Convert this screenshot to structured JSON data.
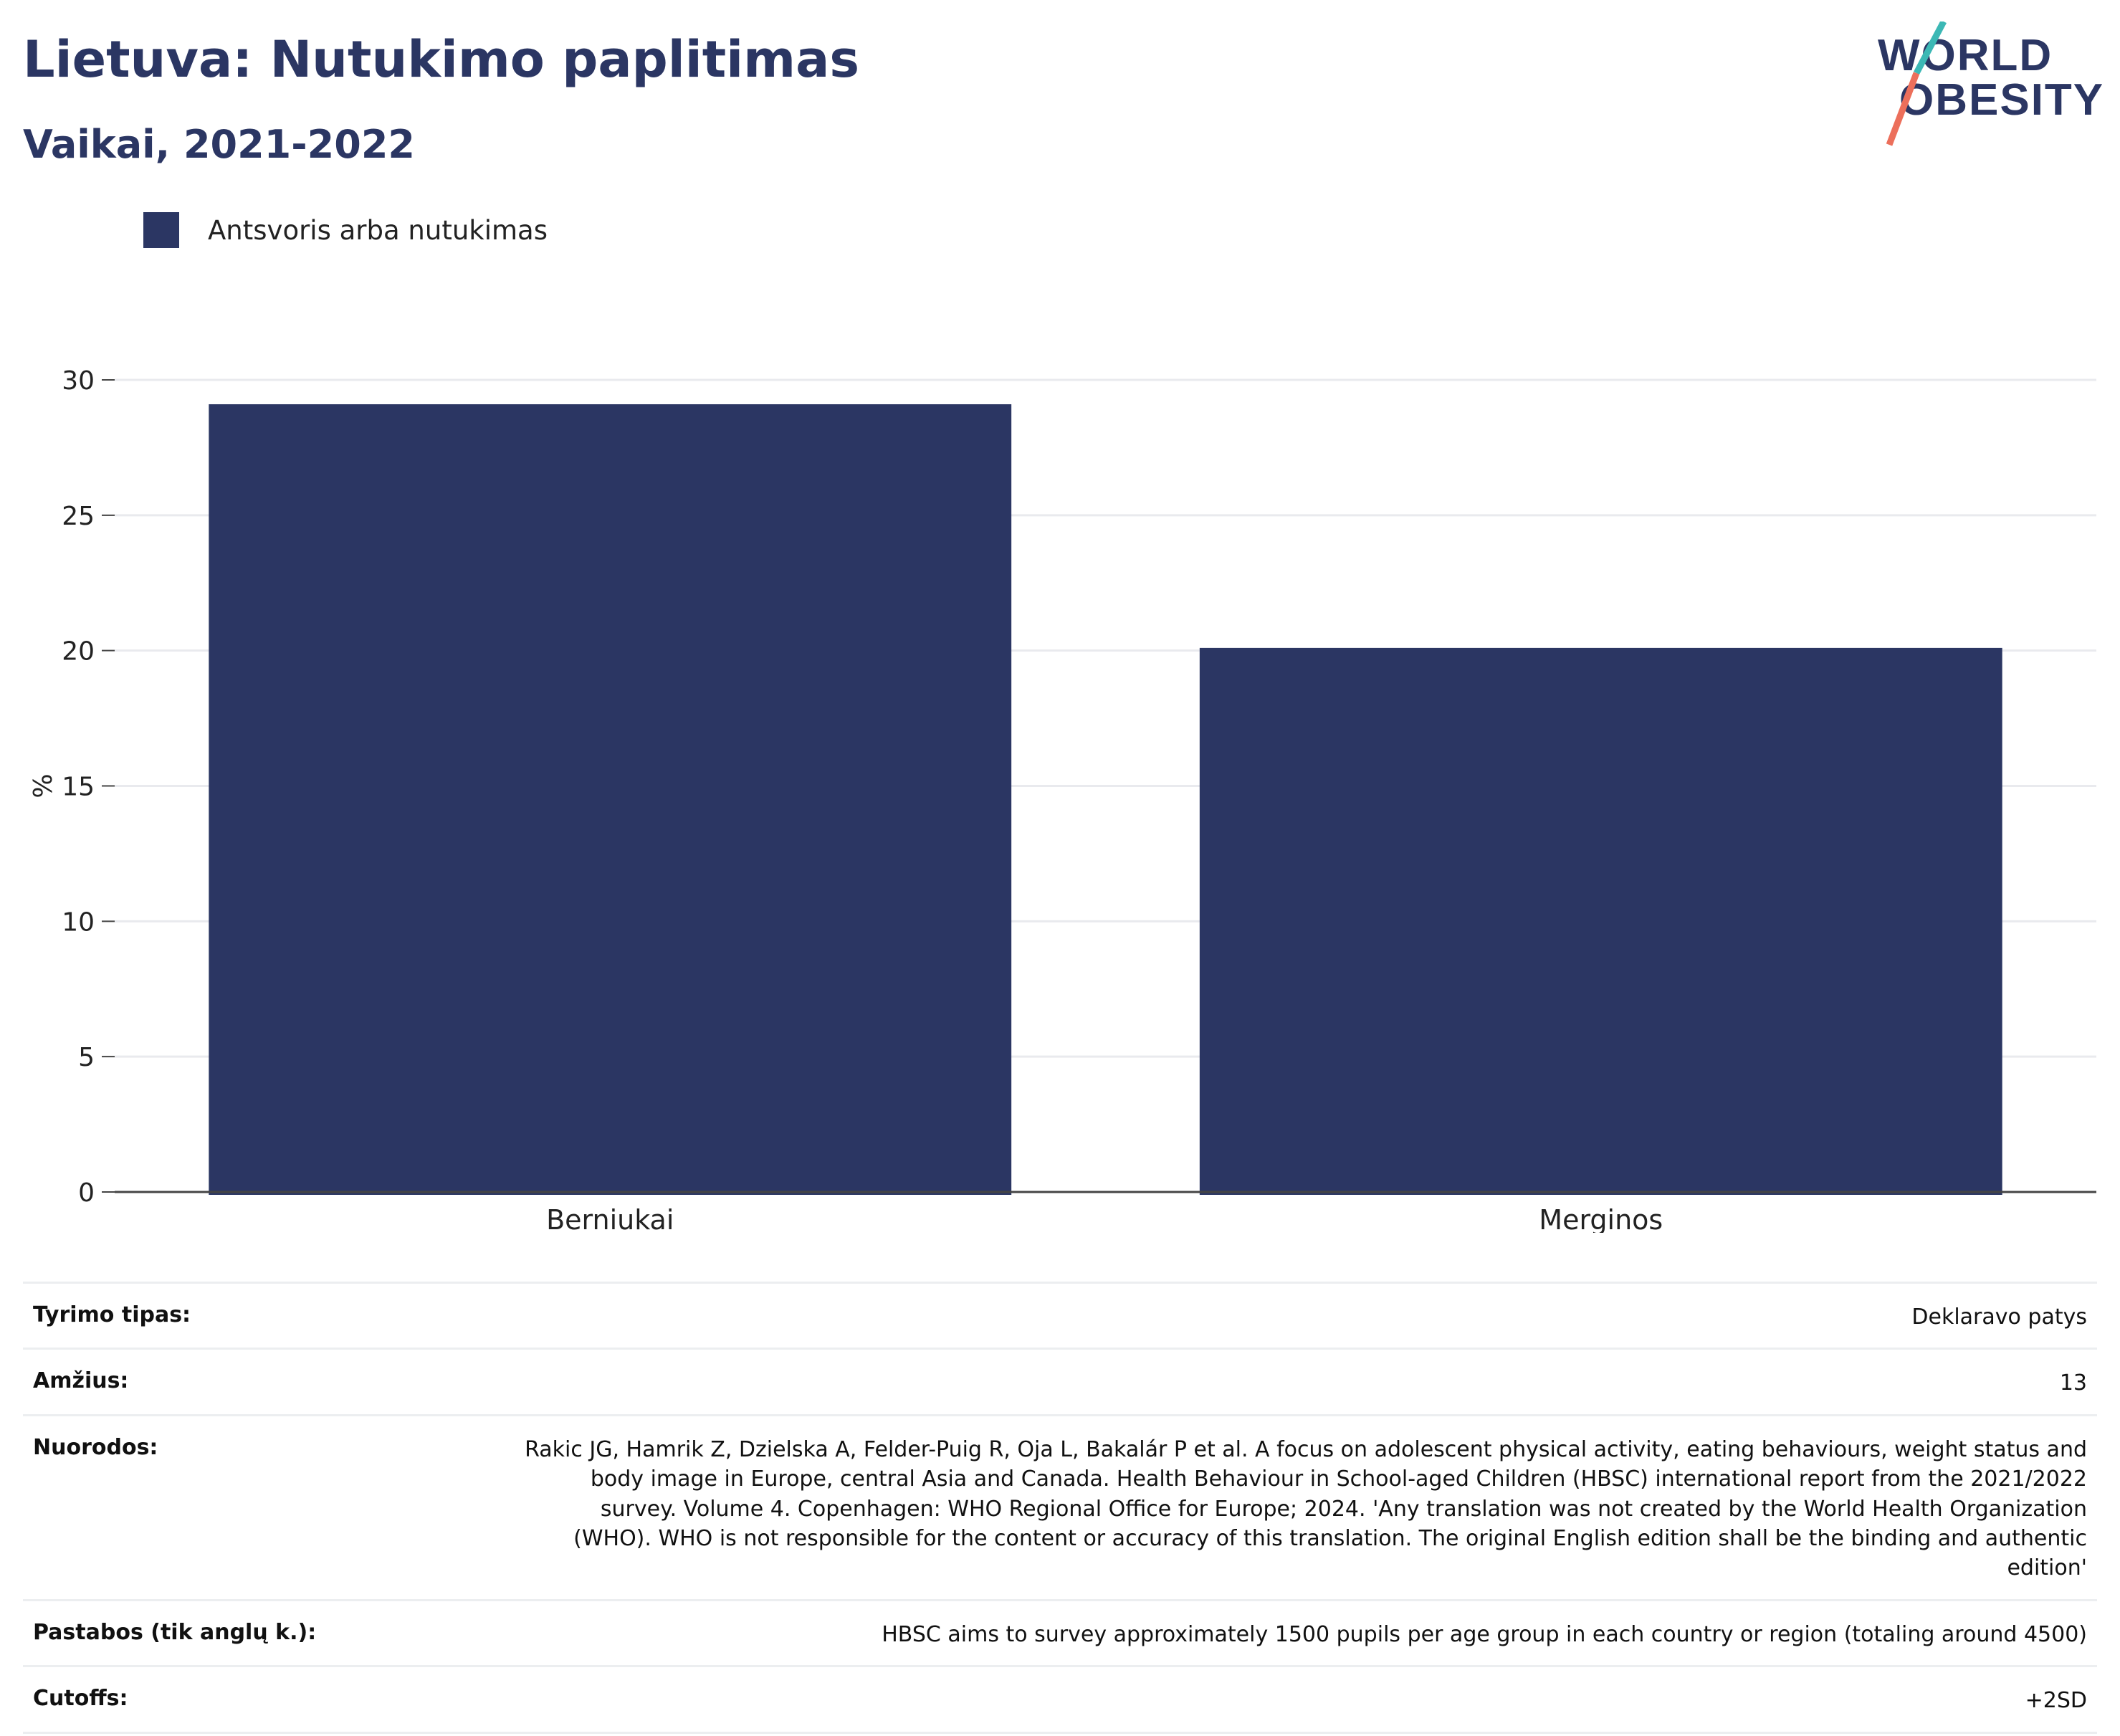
{
  "header": {
    "title": "Lietuva: Nutukimo paplitimas",
    "subtitle": "Vaikai, 2021-2022",
    "logo_line1": "WORLD",
    "logo_line2": "OBESITY"
  },
  "colors": {
    "bar": "#2b3663",
    "text": "#2b3663",
    "logo_teal": "#3cb8b5",
    "logo_coral": "#ec6f5b"
  },
  "legend": {
    "label": "Antsvoris arba nutukimas"
  },
  "chart_data": {
    "type": "bar",
    "categories": [
      "Berniukai",
      "Merginos"
    ],
    "series": [
      {
        "name": "Antsvoris arba nutukimas",
        "values": [
          29.1,
          20.1
        ]
      }
    ],
    "ylabel": "%",
    "ylim": [
      0,
      30
    ],
    "yticks": [
      0,
      5,
      10,
      15,
      20,
      25,
      30
    ],
    "grid": true,
    "legend_position": "top-left"
  },
  "meta": {
    "rows": [
      {
        "label": "Tyrimo tipas:",
        "value": "Deklaravo patys"
      },
      {
        "label": "Amžius:",
        "value": "13"
      },
      {
        "label": "Nuorodos:",
        "value": "Rakic JG, Hamrik Z, Dzielska A, Felder-Puig R, Oja L, Bakalár P et al. A focus on adolescent physical activity, eating behaviours, weight status and body image in Europe, central Asia and Canada. Health Behaviour in School-aged Children (HBSC) international report from the 2021/2022 survey. Volume 4. Copenhagen: WHO Regional Office for Europe; 2024. 'Any translation was not created by the World Health Organization (WHO). WHO is not responsible for the content or accuracy of this translation. The original English edition shall be the binding and authentic edition'"
      },
      {
        "label": "Pastabos (tik anglų k.):",
        "value": "HBSC aims to survey approximately 1500 pupils per age group in each country or region (totaling around 4500)"
      },
      {
        "label": "Cutoffs:",
        "value": "+2SD"
      }
    ]
  }
}
